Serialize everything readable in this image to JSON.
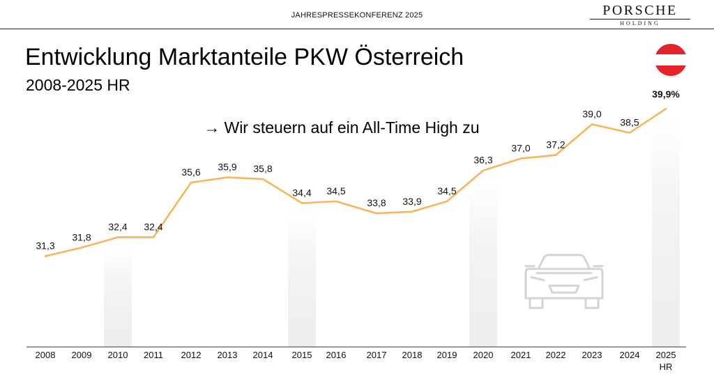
{
  "header": {
    "conference": "JAHRESPRESSEKONFERENZ 2025",
    "brand_name": "PORSCHE",
    "brand_sub": "HOLDING"
  },
  "slide": {
    "title": "Entwicklung Marktanteile PKW Österreich",
    "subtitle": "2008-2025 HR",
    "message_arrow": "→",
    "message": "Wir steuern auf ein All-Time High zu"
  },
  "colors": {
    "line": "#F7B55E",
    "highlight": "#EBEBEB",
    "flag_red": "#E5232B",
    "axis": "#333333"
  },
  "icons": {
    "flag": "austria-flag-icon",
    "car": "car-icon"
  },
  "chart_data": {
    "type": "line",
    "title": "Entwicklung Marktanteile PKW Österreich",
    "xlabel": "",
    "ylabel": "",
    "ylim": [
      26,
      43
    ],
    "categories": [
      "2008",
      "2009",
      "2010",
      "2011",
      "2012",
      "2013",
      "2014",
      "2015",
      "2016",
      "2017",
      "2018",
      "2019",
      "2020",
      "2021",
      "2022",
      "2023",
      "2024",
      "2025"
    ],
    "category_sublabels": {
      "2025": "HR"
    },
    "series": [
      {
        "name": "Marktanteil PKW Österreich",
        "values": [
          31.3,
          31.8,
          32.4,
          32.4,
          35.6,
          35.9,
          35.8,
          34.4,
          34.5,
          33.8,
          33.9,
          34.5,
          36.3,
          37.0,
          37.2,
          39.0,
          38.5,
          39.9
        ]
      }
    ],
    "data_labels": [
      "31,3",
      "31,8",
      "32,4",
      "32,4",
      "35,6",
      "35,9",
      "35,8",
      "34,4",
      "34,5",
      "33,8",
      "33,9",
      "34,5",
      "36,3",
      "37,0",
      "37,2",
      "39,0",
      "38,5",
      "39,9%"
    ],
    "highlighted_years": [
      "2010",
      "2015",
      "2020",
      "2025"
    ],
    "grid": false,
    "legend": "none"
  }
}
